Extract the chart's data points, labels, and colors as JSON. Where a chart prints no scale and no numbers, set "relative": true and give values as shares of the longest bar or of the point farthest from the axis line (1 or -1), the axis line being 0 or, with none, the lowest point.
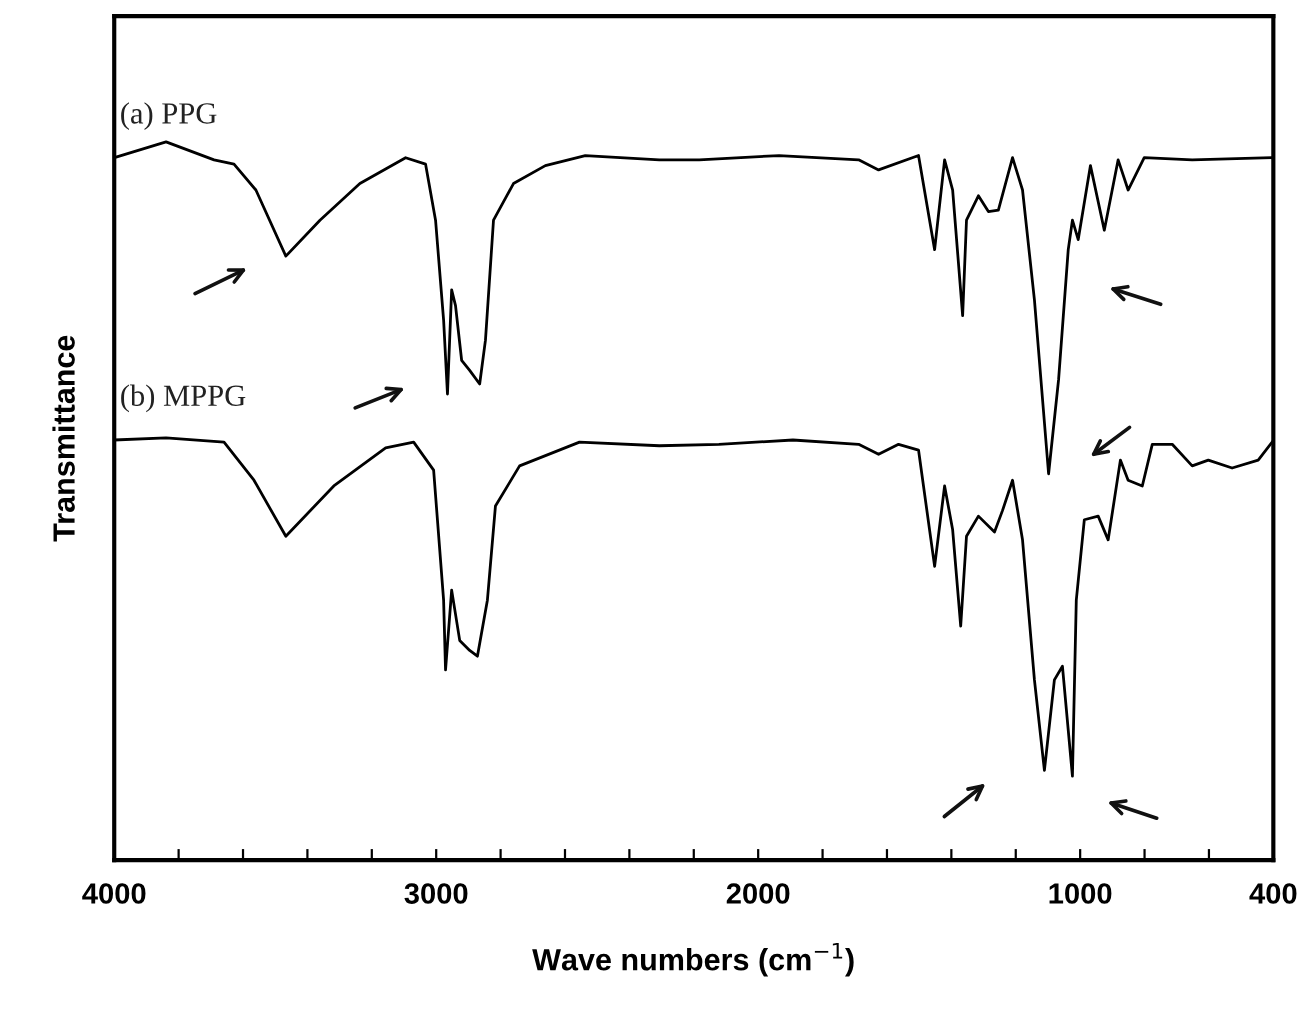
{
  "chart_data": {
    "type": "line",
    "relative": true,
    "xlabel": "Wave numbers (cm$^{−1}$)",
    "ylabel": "Transmittance",
    "xlim": [
      4000,
      400
    ],
    "xticks": [
      4000,
      {
        "value": 3800,
        "label": null
      },
      {
        "value": 3600,
        "label": null
      },
      {
        "value": 3400,
        "label": null
      },
      {
        "value": 3200,
        "label": null
      },
      3000,
      {
        "value": 2800,
        "label": null
      },
      {
        "value": 2600,
        "label": null
      },
      {
        "value": 2400,
        "label": null
      },
      {
        "value": 2200,
        "label": null
      },
      2000,
      {
        "value": 1800,
        "label": null
      },
      {
        "value": 1600,
        "label": null
      },
      {
        "value": 1400,
        "label": null
      },
      {
        "value": 1200,
        "label": null
      },
      1000,
      {
        "value": 800,
        "label": null
      },
      {
        "value": 600,
        "label": null
      },
      400
    ],
    "tick_labels": "x",
    "grid": false,
    "legend": false,
    "marker": "none",
    "line_style": "solid",
    "series": [
      {
        "name": "(a) PPG",
        "color": "#000000",
        "x": [
          4000,
          3839,
          3690,
          3628,
          3560,
          3467,
          3361,
          3237,
          3095,
          3033,
          3002,
          2977,
          2965,
          2952,
          2940,
          2921,
          2896,
          2865,
          2847,
          2822,
          2760,
          2661,
          2537,
          2307,
          2183,
          1935,
          1688,
          1626,
          1502,
          1452,
          1421,
          1396,
          1365,
          1353,
          1316,
          1285,
          1254,
          1210,
          1179,
          1142,
          1098,
          1067,
          1037,
          1024,
          1006,
          968,
          925,
          882,
          851,
          801,
          652,
          404
        ],
        "values": [
          0.978,
          1.0,
          0.975,
          0.969,
          0.933,
          0.841,
          0.891,
          0.942,
          0.978,
          0.969,
          0.891,
          0.752,
          0.649,
          0.794,
          0.772,
          0.696,
          0.682,
          0.663,
          0.724,
          0.891,
          0.942,
          0.967,
          0.981,
          0.975,
          0.975,
          0.981,
          0.975,
          0.961,
          0.981,
          0.85,
          0.975,
          0.933,
          0.758,
          0.891,
          0.925,
          0.903,
          0.905,
          0.978,
          0.933,
          0.78,
          0.538,
          0.669,
          0.85,
          0.891,
          0.864,
          0.967,
          0.877,
          0.975,
          0.933,
          0.978,
          0.975,
          0.978
        ]
      },
      {
        "name": "(b) MPPG",
        "color": "#000000",
        "x": [
          4000,
          3839,
          3659,
          3566,
          3467,
          3318,
          3157,
          3070,
          3008,
          2977,
          2971,
          2952,
          2927,
          2896,
          2872,
          2841,
          2816,
          2741,
          2555,
          2307,
          2122,
          1892,
          1688,
          1626,
          1564,
          1502,
          1452,
          1421,
          1396,
          1371,
          1353,
          1316,
          1266,
          1241,
          1210,
          1179,
          1142,
          1111,
          1080,
          1055,
          1024,
          1012,
          987,
          944,
          913,
          875,
          851,
          807,
          776,
          714,
          652,
          602,
          528,
          447,
          404
        ],
        "values": [
          0.585,
          0.588,
          0.582,
          0.529,
          0.451,
          0.521,
          0.574,
          0.582,
          0.543,
          0.362,
          0.265,
          0.376,
          0.306,
          0.292,
          0.284,
          0.362,
          0.493,
          0.549,
          0.582,
          0.577,
          0.579,
          0.585,
          0.579,
          0.565,
          0.579,
          0.571,
          0.409,
          0.521,
          0.46,
          0.326,
          0.451,
          0.479,
          0.457,
          0.487,
          0.529,
          0.446,
          0.251,
          0.125,
          0.251,
          0.27,
          0.117,
          0.362,
          0.474,
          0.479,
          0.446,
          0.557,
          0.529,
          0.521,
          0.579,
          0.579,
          0.549,
          0.557,
          0.546,
          0.557,
          0.582
        ]
      }
    ]
  }
}
